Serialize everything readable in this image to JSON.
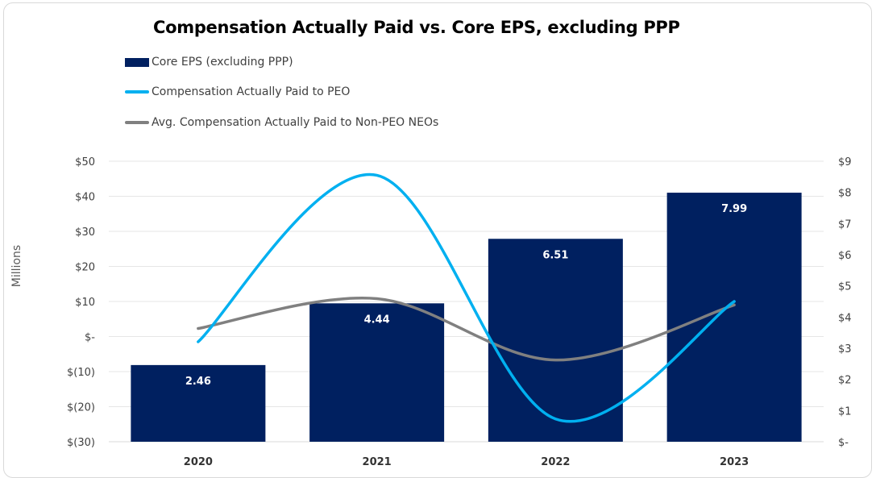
{
  "chart_data": {
    "type": "bar",
    "title": "Compensation Actually Paid vs. Core EPS, excluding PPP",
    "categories": [
      "2020",
      "2021",
      "2022",
      "2023"
    ],
    "ylabel": "Millions",
    "y_left": {
      "range": [
        -30,
        50
      ],
      "ticks": [
        50,
        40,
        30,
        20,
        10,
        0,
        -10,
        -20,
        -30
      ],
      "tick_labels": [
        "$50",
        "$40",
        "$30",
        "$20",
        "$10",
        "$-",
        "$(10)",
        "$(20)",
        "$(30)"
      ]
    },
    "y_right": {
      "range": [
        0,
        9
      ],
      "ticks": [
        9,
        8,
        7,
        6,
        5,
        4,
        3,
        2,
        1,
        0
      ],
      "tick_labels": [
        "$9",
        "$8",
        "$7",
        "$6",
        "$5",
        "$4",
        "$3",
        "$2",
        "$1",
        "$-"
      ]
    },
    "grid": true,
    "legend_placement": "top-left",
    "series": [
      {
        "name": "Core EPS (excluding PPP)",
        "kind": "bar",
        "axis": "right",
        "color": "#002060",
        "values": [
          2.46,
          4.44,
          6.51,
          7.99
        ],
        "labels": [
          "2.46",
          "4.44",
          "6.51",
          "7.99"
        ]
      },
      {
        "name": "Compensation Actually Paid to PEO",
        "kind": "line",
        "smooth": true,
        "axis": "left",
        "color": "#00b0f0",
        "values": [
          -1.5,
          46,
          -23.5,
          10
        ]
      },
      {
        "name": "Avg. Compensation Actually Paid to Non-PEO NEOs",
        "kind": "line",
        "smooth": true,
        "axis": "left",
        "color": "#808080",
        "values": [
          2.3,
          10.8,
          -6.7,
          9
        ]
      }
    ]
  }
}
